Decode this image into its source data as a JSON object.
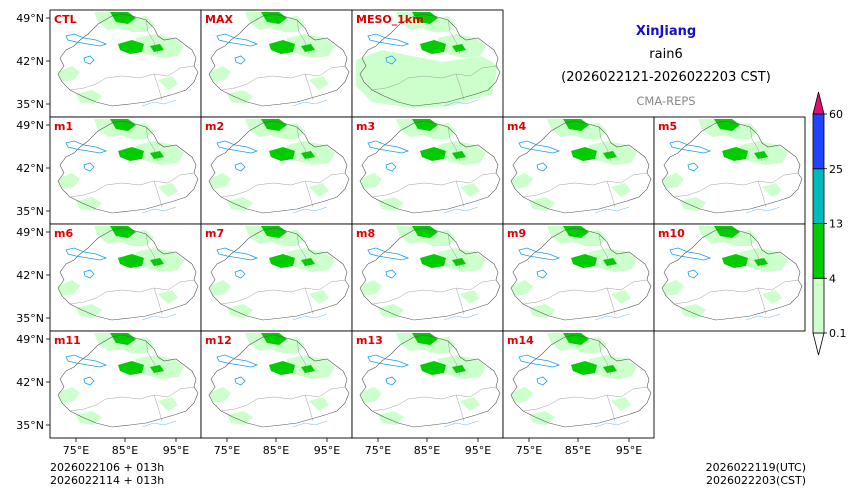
{
  "header": {
    "region": "XinJiang",
    "variable": "rain6",
    "period": "(2026022121-2026022203 CST)",
    "system": "CMA-REPS"
  },
  "footer": {
    "init_utc_line": "2026022106  +  013h",
    "init_cst_line": "2026022114  +  013h",
    "valid_utc": "2026022119(UTC)",
    "valid_cst": "2026022203(CST)"
  },
  "colors": {
    "title": "#1010cc",
    "member_label": "#e00000",
    "subtitle": "#888888",
    "rain_light": "#ccffcc",
    "rain_mid": "#00cc00",
    "rain_heavy": "#00bbbb",
    "rain_extreme": "#2244ff",
    "rain_over": "#e0106e"
  },
  "chart_data": {
    "type": "heatmap",
    "description": "Ensemble small-multiple maps of 6-h accumulated precipitation over XinJiang",
    "panels": [
      [
        "CTL",
        "MAX",
        "MESO_1km"
      ],
      [
        "m1",
        "m2",
        "m3",
        "m4",
        "m5"
      ],
      [
        "m6",
        "m7",
        "m8",
        "m9",
        "m10"
      ],
      [
        "m11",
        "m12",
        "m13",
        "m14"
      ]
    ],
    "lat_ticks": [
      "49°N",
      "42°N",
      "35°N"
    ],
    "lon_ticks": [
      "75°E",
      "85°E",
      "95°E"
    ],
    "colorbar": {
      "levels": [
        "0.1",
        "4",
        "13",
        "25",
        "60"
      ],
      "colors": [
        "#ccffcc",
        "#00cc00",
        "#00bbbb",
        "#2244ff"
      ]
    }
  }
}
